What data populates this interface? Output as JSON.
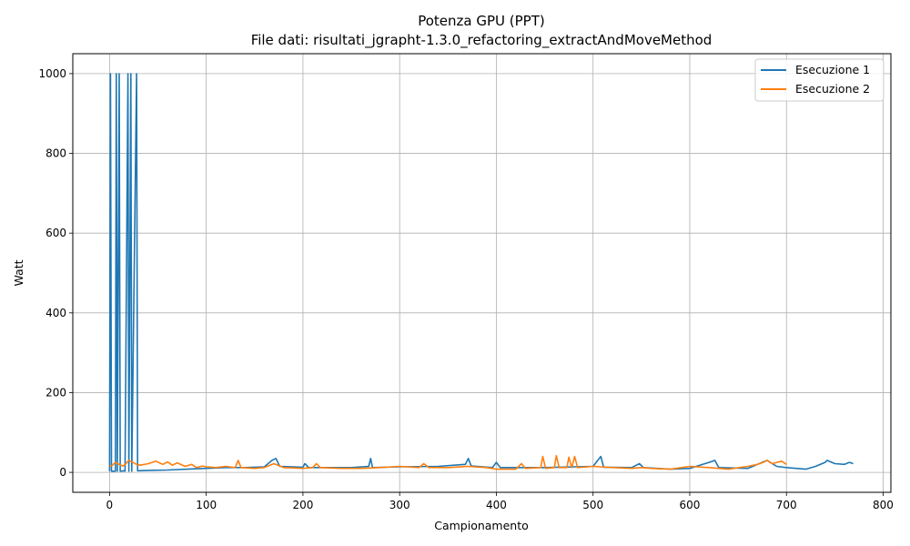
{
  "chart_data": {
    "type": "line",
    "title": "Potenza GPU (PPT)",
    "subtitle": "File dati: risultati_jgrapht-1.3.0_refactoring_extractAndMoveMethod",
    "xlabel": "Campionamento",
    "ylabel": "Watt",
    "xlim": [
      -38,
      808
    ],
    "ylim": [
      -50,
      1050
    ],
    "xticks": [
      0,
      100,
      200,
      300,
      400,
      500,
      600,
      700,
      800
    ],
    "yticks": [
      0,
      200,
      400,
      600,
      800,
      1000
    ],
    "grid": true,
    "legend_position": "top-right",
    "series": [
      {
        "name": "Esecuzione 1",
        "color": "#1f77b4",
        "spikes": [
          [
            1,
            1000
          ],
          [
            7,
            1000
          ],
          [
            10,
            1000
          ],
          [
            19,
            1000
          ],
          [
            22,
            1000
          ],
          [
            28,
            1000
          ]
        ],
        "points": [
          [
            0,
            3
          ],
          [
            1,
            1000
          ],
          [
            2,
            3
          ],
          [
            6,
            3
          ],
          [
            7,
            1000
          ],
          [
            8,
            3
          ],
          [
            10,
            1000
          ],
          [
            11,
            3
          ],
          [
            15,
            4
          ],
          [
            16,
            3
          ],
          [
            19,
            1000
          ],
          [
            20,
            3
          ],
          [
            22,
            1000
          ],
          [
            23,
            3
          ],
          [
            28,
            1000
          ],
          [
            29,
            4
          ],
          [
            40,
            5
          ],
          [
            60,
            6
          ],
          [
            80,
            8
          ],
          [
            100,
            10
          ],
          [
            120,
            12
          ],
          [
            140,
            12
          ],
          [
            160,
            14
          ],
          [
            168,
            30
          ],
          [
            172,
            35
          ],
          [
            176,
            15
          ],
          [
            200,
            13
          ],
          [
            202,
            22
          ],
          [
            206,
            12
          ],
          [
            250,
            12
          ],
          [
            268,
            15
          ],
          [
            270,
            35
          ],
          [
            272,
            12
          ],
          [
            300,
            14
          ],
          [
            340,
            15
          ],
          [
            368,
            20
          ],
          [
            371,
            35
          ],
          [
            374,
            16
          ],
          [
            396,
            12
          ],
          [
            400,
            25
          ],
          [
            404,
            12
          ],
          [
            450,
            12
          ],
          [
            500,
            15
          ],
          [
            508,
            40
          ],
          [
            511,
            13
          ],
          [
            540,
            12
          ],
          [
            548,
            22
          ],
          [
            552,
            12
          ],
          [
            580,
            8
          ],
          [
            600,
            10
          ],
          [
            620,
            25
          ],
          [
            626,
            30
          ],
          [
            630,
            12
          ],
          [
            660,
            10
          ],
          [
            680,
            30
          ],
          [
            690,
            15
          ],
          [
            700,
            12
          ],
          [
            720,
            8
          ],
          [
            730,
            15
          ],
          [
            740,
            25
          ],
          [
            742,
            30
          ],
          [
            750,
            22
          ],
          [
            760,
            20
          ],
          [
            765,
            25
          ],
          [
            769,
            22
          ]
        ]
      },
      {
        "name": "Esecuzione 2",
        "color": "#ff7f0e",
        "points": [
          [
            0,
            15
          ],
          [
            3,
            18
          ],
          [
            6,
            25
          ],
          [
            10,
            20
          ],
          [
            14,
            16
          ],
          [
            17,
            22
          ],
          [
            20,
            30
          ],
          [
            24,
            25
          ],
          [
            28,
            20
          ],
          [
            32,
            18
          ],
          [
            40,
            22
          ],
          [
            48,
            28
          ],
          [
            55,
            20
          ],
          [
            60,
            26
          ],
          [
            65,
            18
          ],
          [
            70,
            24
          ],
          [
            78,
            15
          ],
          [
            85,
            20
          ],
          [
            90,
            12
          ],
          [
            96,
            16
          ],
          [
            100,
            14
          ],
          [
            110,
            12
          ],
          [
            120,
            15
          ],
          [
            130,
            12
          ],
          [
            133,
            30
          ],
          [
            136,
            12
          ],
          [
            150,
            10
          ],
          [
            160,
            12
          ],
          [
            170,
            22
          ],
          [
            180,
            12
          ],
          [
            200,
            10
          ],
          [
            210,
            12
          ],
          [
            214,
            22
          ],
          [
            218,
            12
          ],
          [
            240,
            10
          ],
          [
            260,
            10
          ],
          [
            280,
            12
          ],
          [
            300,
            15
          ],
          [
            320,
            12
          ],
          [
            325,
            22
          ],
          [
            330,
            12
          ],
          [
            350,
            12
          ],
          [
            370,
            15
          ],
          [
            390,
            12
          ],
          [
            400,
            8
          ],
          [
            420,
            8
          ],
          [
            426,
            22
          ],
          [
            430,
            10
          ],
          [
            446,
            12
          ],
          [
            448,
            40
          ],
          [
            451,
            10
          ],
          [
            460,
            12
          ],
          [
            462,
            42
          ],
          [
            465,
            12
          ],
          [
            473,
            12
          ],
          [
            475,
            38
          ],
          [
            478,
            12
          ],
          [
            481,
            40
          ],
          [
            484,
            12
          ],
          [
            500,
            15
          ],
          [
            520,
            12
          ],
          [
            540,
            10
          ],
          [
            550,
            12
          ],
          [
            560,
            10
          ],
          [
            580,
            8
          ],
          [
            600,
            15
          ],
          [
            620,
            12
          ],
          [
            640,
            8
          ],
          [
            660,
            15
          ],
          [
            670,
            20
          ],
          [
            676,
            25
          ],
          [
            680,
            30
          ],
          [
            685,
            22
          ],
          [
            690,
            25
          ],
          [
            695,
            28
          ],
          [
            700,
            20
          ]
        ]
      }
    ]
  }
}
